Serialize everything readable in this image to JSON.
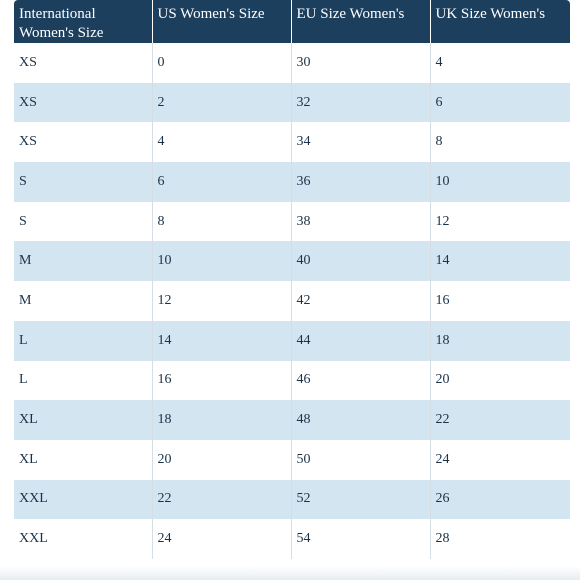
{
  "table": {
    "headers": [
      "International Women's Size",
      "US Women's Size",
      "EU Size Women's",
      "UK Size Women's"
    ],
    "rows": [
      [
        "XS",
        "0",
        "30",
        "4"
      ],
      [
        "XS",
        "2",
        "32",
        "6"
      ],
      [
        "XS",
        "4",
        "34",
        "8"
      ],
      [
        "S",
        "6",
        "36",
        "10"
      ],
      [
        "S",
        "8",
        "38",
        "12"
      ],
      [
        "M",
        "10",
        "40",
        "14"
      ],
      [
        "M",
        "12",
        "42",
        "16"
      ],
      [
        "L",
        "14",
        "44",
        "18"
      ],
      [
        "L",
        "16",
        "46",
        "20"
      ],
      [
        "XL",
        "18",
        "48",
        "22"
      ],
      [
        "XL",
        "20",
        "50",
        "24"
      ],
      [
        "XXL",
        "22",
        "52",
        "26"
      ],
      [
        "XXL",
        "24",
        "54",
        "28"
      ]
    ]
  },
  "colors": {
    "header_bg": "#1c3f5e",
    "header_text": "#ffffff",
    "row_alt_bg": "#d4e5f2",
    "row_bg": "#ffffff",
    "cell_text": "#1a3247"
  }
}
